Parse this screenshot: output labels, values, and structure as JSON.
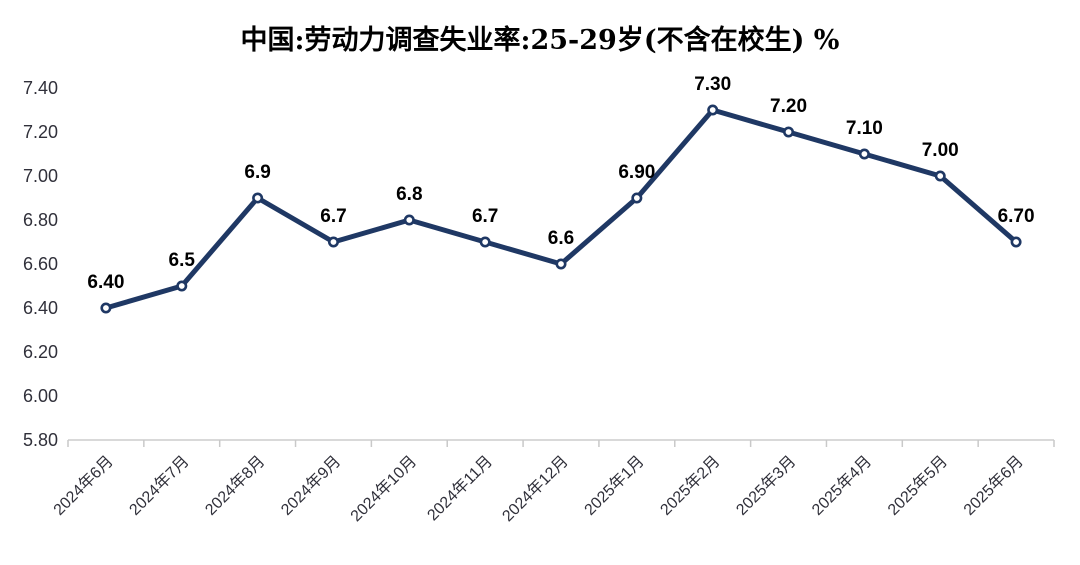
{
  "title": "中国:劳动力调查失业率:25-29岁(不含在校生) %",
  "chart_data": {
    "type": "line",
    "title": "中国:劳动力调查失业率:25-29岁(不含在校生) %",
    "categories": [
      "2024年6月",
      "2024年7月",
      "2024年8月",
      "2024年9月",
      "2024年10月",
      "2024年11月",
      "2024年12月",
      "2025年1月",
      "2025年2月",
      "2025年3月",
      "2025年4月",
      "2025年5月",
      "2025年6月"
    ],
    "values": [
      6.4,
      6.5,
      6.9,
      6.7,
      6.8,
      6.7,
      6.6,
      6.9,
      7.3,
      7.2,
      7.1,
      7.0,
      6.7
    ],
    "point_labels": [
      "6.40",
      "6.5",
      "6.9",
      "6.7",
      "6.8",
      "6.7",
      "6.6",
      "6.90",
      "7.30",
      "7.20",
      "7.10",
      "7.00",
      "6.70"
    ],
    "y_tick_labels": [
      "5.80",
      "6.00",
      "6.20",
      "6.40",
      "6.60",
      "6.80",
      "7.00",
      "7.20",
      "7.40"
    ],
    "ylim": [
      5.8,
      7.4
    ],
    "y_step": 0.2,
    "xlabel": "",
    "ylabel": "",
    "grid": false,
    "legend_position": "none",
    "line_color": "#1f3864",
    "marker_style": "open-circle",
    "marker_fill": "#ffffff",
    "data_label_color": "#000000",
    "axis_label_color": "#30303a",
    "axis_line_color": "#d9d9d9",
    "tick_color": "#c9c9c9",
    "background": "#ffffff"
  }
}
